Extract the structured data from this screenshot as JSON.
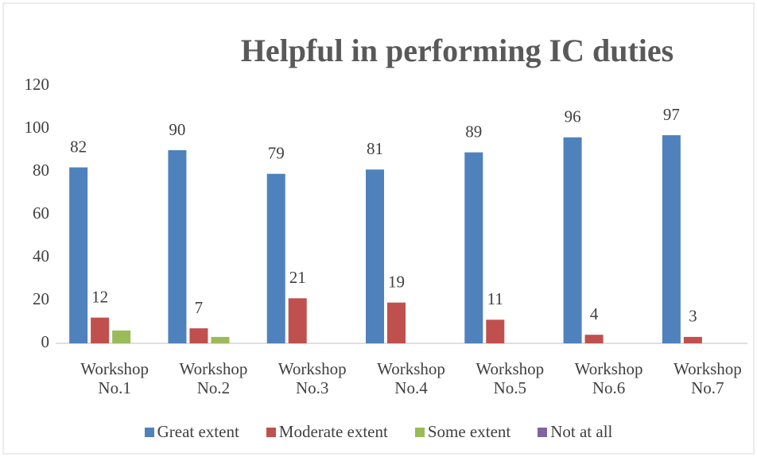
{
  "chart_data": {
    "type": "bar",
    "title": "Helpful in performing IC duties",
    "categories": [
      "Workshop No.1",
      "Workshop No.2",
      "Workshop No.3",
      "Workshop No.4",
      "Workshop No.5",
      "Workshop No.6",
      "Workshop No.7"
    ],
    "series": [
      {
        "name": "Great extent",
        "color": "#4f81bd",
        "values": [
          82,
          90,
          79,
          81,
          89,
          96,
          97
        ],
        "show_labels": true
      },
      {
        "name": "Moderate extent",
        "color": "#c0504d",
        "values": [
          12,
          7,
          21,
          19,
          11,
          4,
          3
        ],
        "show_labels": true
      },
      {
        "name": "Some extent",
        "color": "#9bbb59",
        "values": [
          6,
          3,
          0,
          0,
          0,
          0,
          0
        ],
        "show_labels": false
      },
      {
        "name": "Not at all",
        "color": "#8064a2",
        "values": [
          0,
          0,
          0,
          0,
          0,
          0,
          0
        ],
        "show_labels": false
      }
    ],
    "ylim": [
      0,
      120
    ],
    "yticks": [
      0,
      20,
      40,
      60,
      80,
      100,
      120
    ],
    "grid": false,
    "legend": "bottom"
  }
}
